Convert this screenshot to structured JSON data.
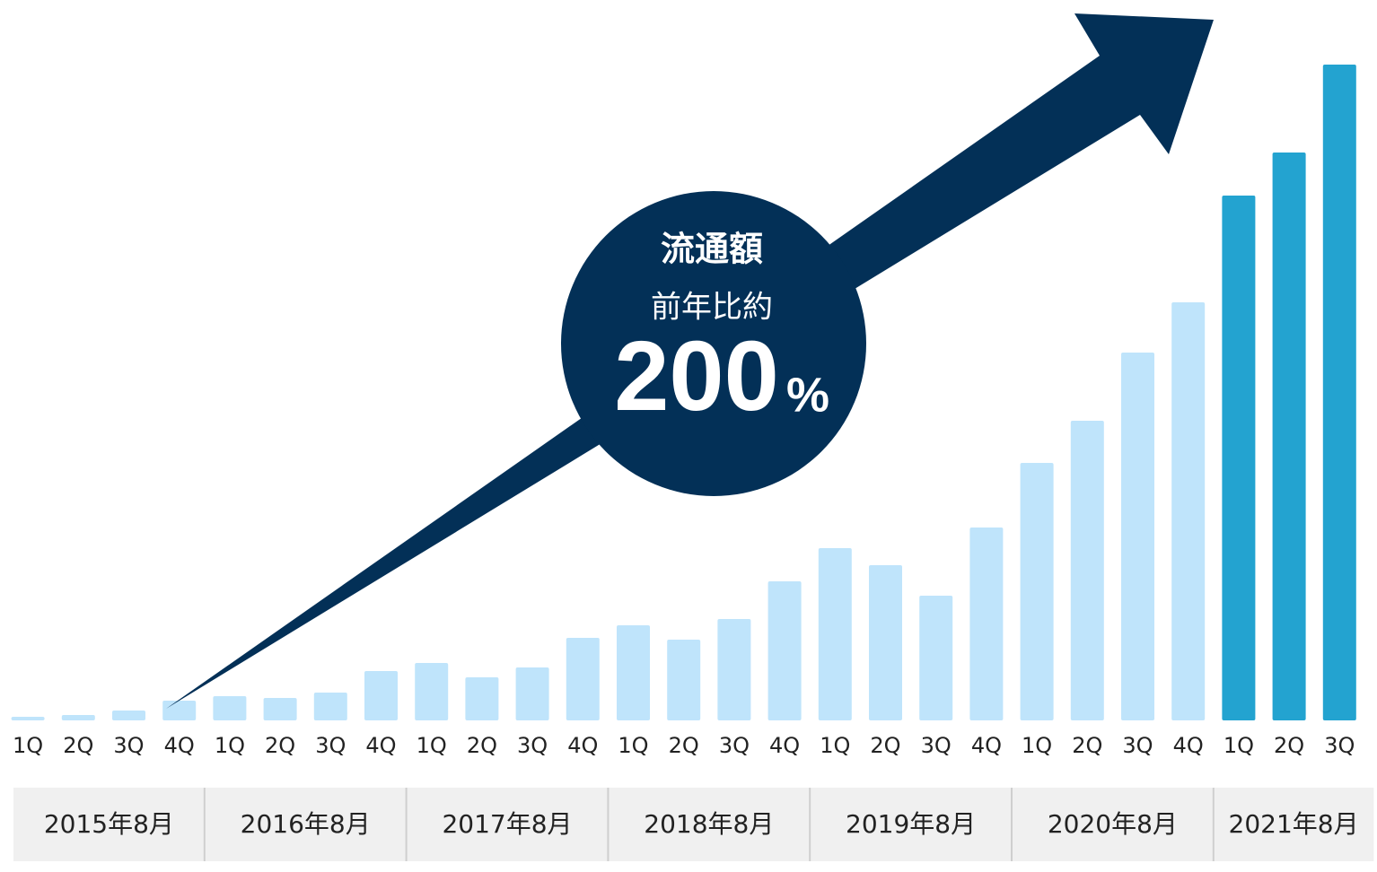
{
  "chart_data": {
    "type": "bar",
    "categories": [
      "1Q",
      "2Q",
      "3Q",
      "4Q",
      "1Q",
      "2Q",
      "3Q",
      "4Q",
      "1Q",
      "2Q",
      "3Q",
      "4Q",
      "1Q",
      "2Q",
      "3Q",
      "4Q",
      "1Q",
      "2Q",
      "3Q",
      "4Q",
      "1Q",
      "2Q",
      "3Q",
      "4Q",
      "1Q",
      "2Q",
      "3Q"
    ],
    "values": [
      4,
      6,
      11,
      22,
      27,
      25,
      31,
      55,
      64,
      48,
      59,
      92,
      106,
      90,
      113,
      155,
      192,
      173,
      139,
      215,
      287,
      334,
      410,
      466,
      585,
      633,
      731
    ],
    "colors": [
      "#bfe4fb",
      "#bfe4fb",
      "#bfe4fb",
      "#bfe4fb",
      "#bfe4fb",
      "#bfe4fb",
      "#bfe4fb",
      "#bfe4fb",
      "#bfe4fb",
      "#bfe4fb",
      "#bfe4fb",
      "#bfe4fb",
      "#bfe4fb",
      "#bfe4fb",
      "#bfe4fb",
      "#bfe4fb",
      "#bfe4fb",
      "#bfe4fb",
      "#bfe4fb",
      "#bfe4fb",
      "#bfe4fb",
      "#bfe4fb",
      "#bfe4fb",
      "#bfe4fb",
      "#23a3d0",
      "#23a3d0",
      "#23a3d0"
    ],
    "ylim": [
      0,
      731
    ],
    "groups": [
      {
        "label": "2015年8月",
        "span": 4
      },
      {
        "label": "2016年8月",
        "span": 4
      },
      {
        "label": "2017年8月",
        "span": 4
      },
      {
        "label": "2018年8月",
        "span": 4
      },
      {
        "label": "2019年8月",
        "span": 4
      },
      {
        "label": "2020年8月",
        "span": 4
      },
      {
        "label": "2021年8月",
        "span": 3
      }
    ],
    "annotation": {
      "title": "流通額",
      "subtitle": "前年比約",
      "value": "200",
      "unit": "%"
    }
  }
}
